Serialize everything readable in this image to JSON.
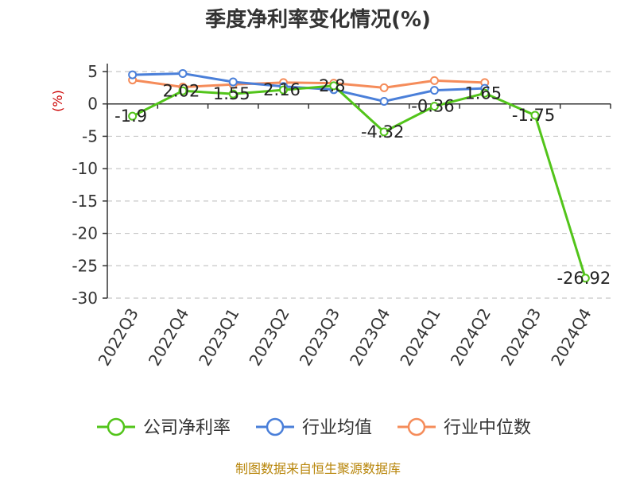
{
  "chart_data": {
    "type": "line",
    "title": "季度净利率变化情况(%)",
    "ylabel": "(%)",
    "categories": [
      "2022Q3",
      "2022Q4",
      "2023Q1",
      "2023Q2",
      "2023Q3",
      "2023Q4",
      "2024Q1",
      "2024Q2",
      "2024Q3",
      "2024Q4"
    ],
    "ylim": [
      -30,
      5
    ],
    "yticks": [
      5,
      0,
      -5,
      -10,
      -15,
      -20,
      -25,
      -30
    ],
    "grid": true,
    "legend_position": "bottom",
    "series": [
      {
        "name": "公司净利率",
        "color": "#52c41a",
        "values": [
          -1.9,
          2.02,
          1.55,
          2.16,
          2.8,
          -4.32,
          -0.36,
          1.65,
          -1.75,
          -26.92
        ],
        "labels": [
          "-1.9",
          "2.02",
          "1.55",
          "2.16",
          "2.8",
          "-4.32",
          "-0.36",
          "1.65",
          "-1.75",
          "-26.92"
        ]
      },
      {
        "name": "行业均值",
        "color": "#4a7fd9",
        "values": [
          4.5,
          4.7,
          3.4,
          2.7,
          2.2,
          0.4,
          2.1,
          2.4,
          null,
          null
        ]
      },
      {
        "name": "行业中位数",
        "color": "#f58c5a",
        "values": [
          3.7,
          2.6,
          3.0,
          3.3,
          3.2,
          2.5,
          3.6,
          3.3,
          null,
          null
        ]
      }
    ]
  },
  "source": "制图数据来自恒生聚源数据库"
}
